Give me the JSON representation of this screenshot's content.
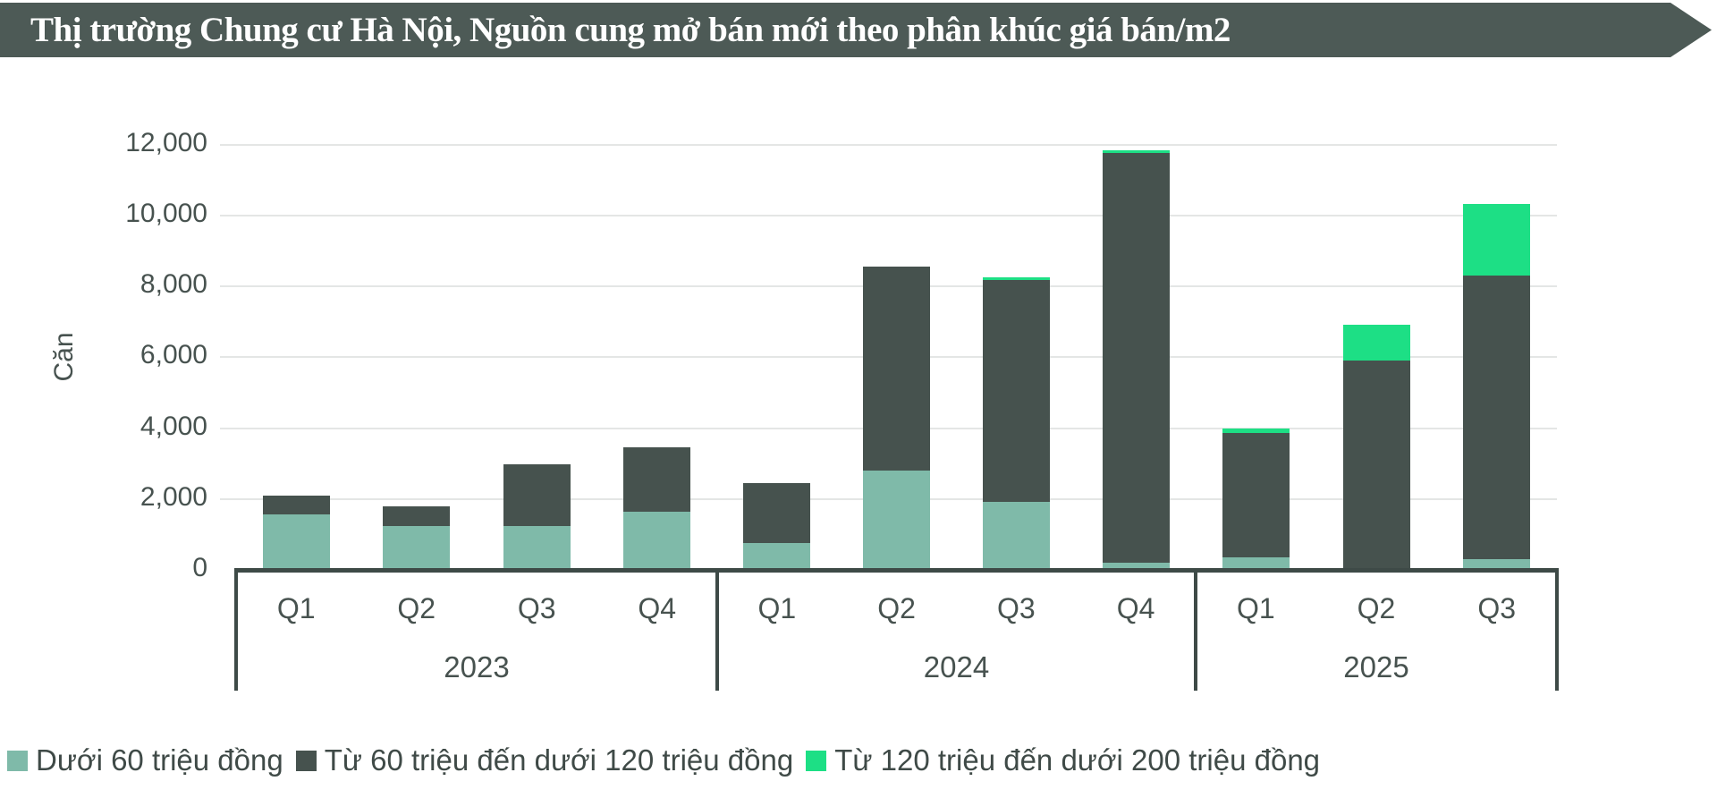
{
  "banner": {
    "title": "Thị trường Chung cư Hà Nội, Nguồn cung mở bán mới theo phân khúc giá bán/m2",
    "bg_color": "#4d5a56",
    "text_color": "#ffffff"
  },
  "chart_data": {
    "type": "bar",
    "stacked": true,
    "ylabel": "Căn",
    "ylim": [
      0,
      12000
    ],
    "ytick_step": 2000,
    "ytick_labels": [
      "0",
      "2,000",
      "4,000",
      "6,000",
      "8,000",
      "10,000",
      "12,000"
    ],
    "grid": true,
    "legend_position": "bottom",
    "groups": [
      {
        "year": "2023",
        "quarters": [
          "Q1",
          "Q2",
          "Q3",
          "Q4"
        ]
      },
      {
        "year": "2024",
        "quarters": [
          "Q1",
          "Q2",
          "Q3",
          "Q4"
        ]
      },
      {
        "year": "2025",
        "quarters": [
          "Q1",
          "Q2",
          "Q3"
        ]
      }
    ],
    "categories": [
      "Q1 2023",
      "Q2 2023",
      "Q3 2023",
      "Q4 2023",
      "Q1 2024",
      "Q2 2024",
      "Q3 2024",
      "Q4 2024",
      "Q1 2025",
      "Q2 2025",
      "Q3 2025"
    ],
    "series": [
      {
        "name": "Dưới 60 triệu đồng",
        "color": "#7fbaa9",
        "values": [
          1560,
          1230,
          1230,
          1650,
          750,
          2800,
          1930,
          200,
          350,
          0,
          300
        ]
      },
      {
        "name": "Từ 60 triệu đến dưới 120 triệu đồng",
        "color": "#46524e",
        "values": [
          530,
          570,
          1750,
          1800,
          1700,
          5750,
          6260,
          11580,
          3510,
          5920,
          8000
        ]
      },
      {
        "name": "Từ 120 triệu đến dưới 200 triệu đồng",
        "color": "#1ddf85",
        "values": [
          0,
          0,
          0,
          0,
          0,
          0,
          80,
          70,
          120,
          1010,
          2020
        ]
      }
    ],
    "totals": [
      2090,
      1800,
      2980,
      3450,
      2450,
      8550,
      8270,
      11850,
      3980,
      6930,
      10320
    ]
  },
  "legend": {
    "items": [
      {
        "label": "Dưới 60 triệu đồng",
        "color": "#7fbaa9"
      },
      {
        "label": "Từ 60 triệu đến dưới 120 triệu đồng",
        "color": "#46524e"
      },
      {
        "label": "Từ 120 triệu đến dưới 200 triệu đồng",
        "color": "#1ddf85"
      }
    ]
  }
}
